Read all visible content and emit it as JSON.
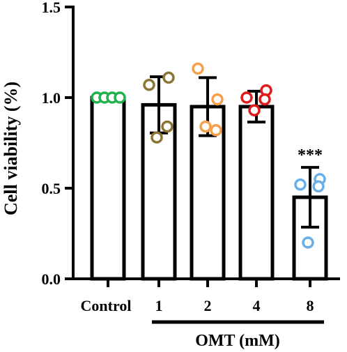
{
  "chart_data": {
    "type": "bar",
    "title": "",
    "ylabel": "Cell viability (%)",
    "xlabel": "OMT (mM)",
    "ylim": [
      0,
      1.5
    ],
    "yticks": [
      0.0,
      0.5,
      1.0,
      1.5
    ],
    "ytick_labels": [
      "0.0",
      "0.5",
      "1.0",
      "1.5"
    ],
    "categories": [
      "Control",
      "1",
      "2",
      "4",
      "8"
    ],
    "values": [
      1.0,
      0.96,
      0.95,
      0.95,
      0.45
    ],
    "errors": [
      0.0,
      0.155,
      0.16,
      0.085,
      0.165
    ],
    "points": [
      [
        1.0,
        1.0,
        1.0,
        1.0
      ],
      [
        1.07,
        1.11,
        0.84,
        0.78
      ],
      [
        1.16,
        0.99,
        0.82,
        0.84
      ],
      [
        1.0,
        1.04,
        0.99,
        0.93
      ],
      [
        0.52,
        0.55,
        0.51,
        0.2
      ]
    ],
    "point_colors": [
      "#22b14c",
      "#8b7536",
      "#f5a04a",
      "#e01b1b",
      "#6aaee8"
    ],
    "significance": [
      "",
      "",
      "",
      "",
      "***"
    ],
    "grid": false,
    "legend": "none"
  }
}
